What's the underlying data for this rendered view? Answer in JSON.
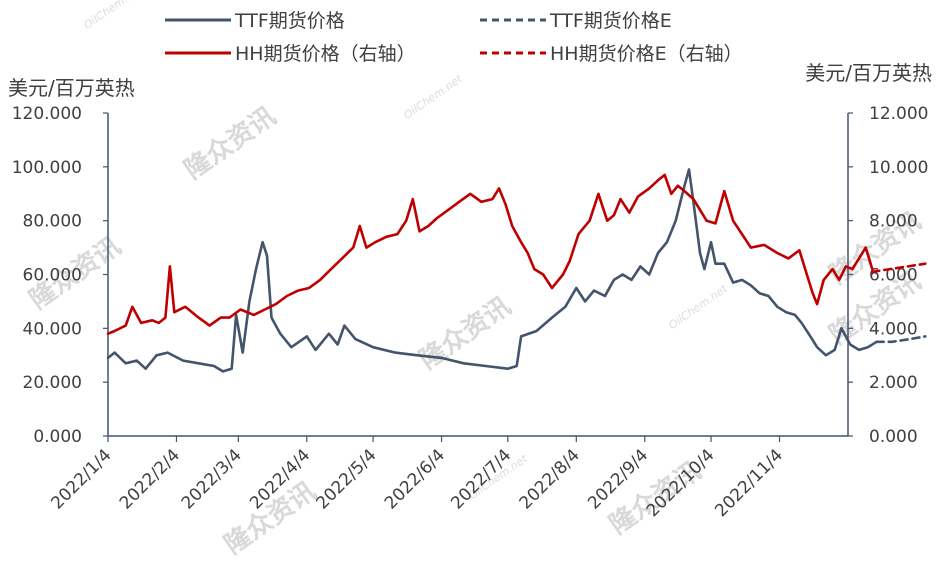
{
  "chart_data": {
    "type": "line",
    "title": "",
    "y_left_label": "美元/百万英热",
    "y_right_label": "美元/百万英热",
    "y_left_ticks": [
      "0.000",
      "20.000",
      "40.000",
      "60.000",
      "80.000",
      "100.000",
      "120.000"
    ],
    "y_right_ticks": [
      "0.000",
      "2.000",
      "4.000",
      "6.000",
      "8.000",
      "10.000",
      "12.000"
    ],
    "ylim_left": [
      0,
      120
    ],
    "ylim_right": [
      0,
      12
    ],
    "x_ticks": [
      "2022/1/4",
      "2022/2/4",
      "2022/3/4",
      "2022/4/4",
      "2022/5/4",
      "2022/6/4",
      "2022/7/4",
      "2022/8/4",
      "2022/9/4",
      "2022/10/4",
      "2022/11/4"
    ],
    "x_range": [
      "2022-01-04",
      "2022-12-05"
    ],
    "legend": {
      "placement": "top",
      "entries": [
        {
          "label": "TTF期货价格",
          "color": "#44546a",
          "style": "solid"
        },
        {
          "label": "TTF期货价格E",
          "color": "#44546a",
          "style": "dashed"
        },
        {
          "label": "HH期货价格（右轴）",
          "color": "#c00000",
          "style": "solid"
        },
        {
          "label": "HH期货价格E（右轴）",
          "color": "#c00000",
          "style": "dashed"
        }
      ]
    },
    "series": [
      {
        "name": "TTF期货价格",
        "axis": "left",
        "color": "#44546a",
        "style": "solid",
        "points": [
          [
            "2022-01-04",
            29
          ],
          [
            "2022-01-07",
            31
          ],
          [
            "2022-01-12",
            27
          ],
          [
            "2022-01-17",
            28
          ],
          [
            "2022-01-21",
            25
          ],
          [
            "2022-01-26",
            30
          ],
          [
            "2022-01-31",
            31
          ],
          [
            "2022-02-07",
            28
          ],
          [
            "2022-02-14",
            27
          ],
          [
            "2022-02-21",
            26
          ],
          [
            "2022-02-25",
            24
          ],
          [
            "2022-03-01",
            25
          ],
          [
            "2022-03-03",
            45
          ],
          [
            "2022-03-06",
            31
          ],
          [
            "2022-03-09",
            50
          ],
          [
            "2022-03-12",
            62
          ],
          [
            "2022-03-15",
            72
          ],
          [
            "2022-03-17",
            67
          ],
          [
            "2022-03-19",
            44
          ],
          [
            "2022-03-23",
            38
          ],
          [
            "2022-03-28",
            33
          ],
          [
            "2022-04-04",
            37
          ],
          [
            "2022-04-08",
            32
          ],
          [
            "2022-04-14",
            38
          ],
          [
            "2022-04-18",
            34
          ],
          [
            "2022-04-21",
            41
          ],
          [
            "2022-04-26",
            36
          ],
          [
            "2022-05-04",
            33
          ],
          [
            "2022-05-14",
            31
          ],
          [
            "2022-05-24",
            30
          ],
          [
            "2022-06-04",
            29
          ],
          [
            "2022-06-14",
            27
          ],
          [
            "2022-06-24",
            26
          ],
          [
            "2022-07-04",
            25
          ],
          [
            "2022-07-08",
            26
          ],
          [
            "2022-07-10",
            37
          ],
          [
            "2022-07-17",
            39
          ],
          [
            "2022-07-24",
            44
          ],
          [
            "2022-07-30",
            48
          ],
          [
            "2022-08-04",
            55
          ],
          [
            "2022-08-08",
            50
          ],
          [
            "2022-08-12",
            54
          ],
          [
            "2022-08-17",
            52
          ],
          [
            "2022-08-21",
            58
          ],
          [
            "2022-08-25",
            60
          ],
          [
            "2022-08-29",
            58
          ],
          [
            "2022-09-02",
            63
          ],
          [
            "2022-09-06",
            60
          ],
          [
            "2022-09-10",
            68
          ],
          [
            "2022-09-14",
            72
          ],
          [
            "2022-09-18",
            80
          ],
          [
            "2022-09-22",
            93
          ],
          [
            "2022-09-24",
            99
          ],
          [
            "2022-09-26",
            87
          ],
          [
            "2022-09-29",
            68
          ],
          [
            "2022-10-01",
            62
          ],
          [
            "2022-10-04",
            72
          ],
          [
            "2022-10-06",
            64
          ],
          [
            "2022-10-10",
            64
          ],
          [
            "2022-10-14",
            57
          ],
          [
            "2022-10-18",
            58
          ],
          [
            "2022-10-22",
            56
          ],
          [
            "2022-10-26",
            53
          ],
          [
            "2022-10-30",
            52
          ],
          [
            "2022-11-03",
            48
          ],
          [
            "2022-11-07",
            46
          ],
          [
            "2022-11-11",
            45
          ],
          [
            "2022-11-14",
            42
          ],
          [
            "2022-11-18",
            37
          ],
          [
            "2022-11-21",
            33
          ],
          [
            "2022-11-25",
            30
          ],
          [
            "2022-11-29",
            32
          ],
          [
            "2022-12-02",
            40
          ],
          [
            "2022-12-06",
            34
          ],
          [
            "2022-12-10",
            32
          ],
          [
            "2022-12-14",
            33
          ],
          [
            "2022-12-18",
            35
          ]
        ]
      },
      {
        "name": "TTF期货价格E",
        "axis": "left",
        "color": "#44546a",
        "style": "dashed",
        "points": [
          [
            "2022-12-18",
            35
          ],
          [
            "2022-12-25",
            35
          ],
          [
            "2023-01-02",
            36
          ],
          [
            "2023-01-09",
            37
          ]
        ]
      },
      {
        "name": "HH期货价格（右轴）",
        "axis": "right",
        "color": "#c00000",
        "style": "solid",
        "points": [
          [
            "2022-01-04",
            3.8
          ],
          [
            "2022-01-07",
            3.9
          ],
          [
            "2022-01-12",
            4.1
          ],
          [
            "2022-01-15",
            4.8
          ],
          [
            "2022-01-19",
            4.2
          ],
          [
            "2022-01-24",
            4.3
          ],
          [
            "2022-01-27",
            4.2
          ],
          [
            "2022-01-30",
            4.4
          ],
          [
            "2022-02-01",
            6.3
          ],
          [
            "2022-02-03",
            4.6
          ],
          [
            "2022-02-08",
            4.8
          ],
          [
            "2022-02-14",
            4.4
          ],
          [
            "2022-02-19",
            4.1
          ],
          [
            "2022-02-24",
            4.4
          ],
          [
            "2022-02-28",
            4.4
          ],
          [
            "2022-03-05",
            4.7
          ],
          [
            "2022-03-11",
            4.5
          ],
          [
            "2022-03-16",
            4.7
          ],
          [
            "2022-03-21",
            4.9
          ],
          [
            "2022-03-26",
            5.2
          ],
          [
            "2022-03-31",
            5.4
          ],
          [
            "2022-04-05",
            5.5
          ],
          [
            "2022-04-10",
            5.8
          ],
          [
            "2022-04-15",
            6.2
          ],
          [
            "2022-04-20",
            6.6
          ],
          [
            "2022-04-25",
            7.0
          ],
          [
            "2022-04-28",
            7.8
          ],
          [
            "2022-05-01",
            7.0
          ],
          [
            "2022-05-05",
            7.2
          ],
          [
            "2022-05-10",
            7.4
          ],
          [
            "2022-05-15",
            7.5
          ],
          [
            "2022-05-19",
            8.0
          ],
          [
            "2022-05-22",
            8.8
          ],
          [
            "2022-05-25",
            7.6
          ],
          [
            "2022-05-29",
            7.8
          ],
          [
            "2022-06-02",
            8.1
          ],
          [
            "2022-06-07",
            8.4
          ],
          [
            "2022-06-12",
            8.7
          ],
          [
            "2022-06-17",
            9.0
          ],
          [
            "2022-06-22",
            8.7
          ],
          [
            "2022-06-27",
            8.8
          ],
          [
            "2022-06-30",
            9.2
          ],
          [
            "2022-07-03",
            8.6
          ],
          [
            "2022-07-06",
            7.8
          ],
          [
            "2022-07-10",
            7.2
          ],
          [
            "2022-07-13",
            6.8
          ],
          [
            "2022-07-16",
            6.2
          ],
          [
            "2022-07-20",
            6.0
          ],
          [
            "2022-07-24",
            5.5
          ],
          [
            "2022-07-26",
            5.7
          ],
          [
            "2022-07-29",
            6.0
          ],
          [
            "2022-08-01",
            6.5
          ],
          [
            "2022-08-05",
            7.5
          ],
          [
            "2022-08-10",
            8.0
          ],
          [
            "2022-08-14",
            9.0
          ],
          [
            "2022-08-18",
            8.0
          ],
          [
            "2022-08-21",
            8.2
          ],
          [
            "2022-08-24",
            8.8
          ],
          [
            "2022-08-28",
            8.3
          ],
          [
            "2022-09-01",
            8.9
          ],
          [
            "2022-09-06",
            9.2
          ],
          [
            "2022-09-10",
            9.5
          ],
          [
            "2022-09-13",
            9.7
          ],
          [
            "2022-09-16",
            9.0
          ],
          [
            "2022-09-19",
            9.3
          ],
          [
            "2022-09-22",
            9.1
          ],
          [
            "2022-09-26",
            8.8
          ],
          [
            "2022-10-02",
            8.0
          ],
          [
            "2022-10-06",
            7.9
          ],
          [
            "2022-10-10",
            9.1
          ],
          [
            "2022-10-14",
            8.0
          ],
          [
            "2022-10-18",
            7.5
          ],
          [
            "2022-10-22",
            7.0
          ],
          [
            "2022-10-28",
            7.1
          ],
          [
            "2022-11-03",
            6.8
          ],
          [
            "2022-11-08",
            6.6
          ],
          [
            "2022-11-13",
            6.9
          ],
          [
            "2022-11-16",
            6.1
          ],
          [
            "2022-11-19",
            5.3
          ],
          [
            "2022-11-21",
            4.9
          ],
          [
            "2022-11-24",
            5.8
          ],
          [
            "2022-11-28",
            6.2
          ],
          [
            "2022-12-01",
            5.8
          ],
          [
            "2022-12-04",
            6.3
          ],
          [
            "2022-12-07",
            6.2
          ],
          [
            "2022-12-10",
            6.6
          ],
          [
            "2022-12-13",
            7.0
          ],
          [
            "2022-12-16",
            6.2
          ]
        ]
      },
      {
        "name": "HH期货价格E（右轴）",
        "axis": "right",
        "color": "#c00000",
        "style": "dashed",
        "points": [
          [
            "2022-12-16",
            6.1
          ],
          [
            "2022-12-24",
            6.2
          ],
          [
            "2023-01-01",
            6.3
          ],
          [
            "2023-01-09",
            6.4
          ]
        ]
      }
    ],
    "grid": false
  },
  "watermark": {
    "brand_text": "隆众资讯",
    "site_text": "OilChem.net"
  }
}
